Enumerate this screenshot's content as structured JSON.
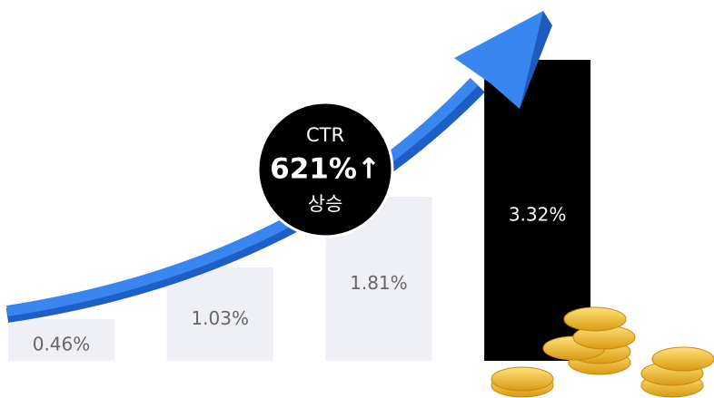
{
  "chart_data": {
    "type": "bar",
    "categories": [
      null,
      null,
      null,
      null
    ],
    "values": [
      0.46,
      1.03,
      1.81,
      3.32
    ],
    "value_labels": [
      "0.46%",
      "1.03%",
      "1.81%",
      "3.32%"
    ],
    "colors": [
      "#eef0f5",
      "#eef0f5",
      "#eef0f5",
      "#000000"
    ],
    "label_colors": [
      "#666666",
      "#666666",
      "#666666",
      "#ffffff"
    ],
    "annotation": {
      "label": "CTR",
      "value": "621%↑",
      "note": "상승"
    }
  }
}
